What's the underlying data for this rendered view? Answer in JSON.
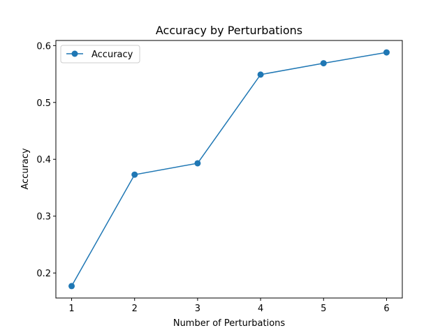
{
  "chart_data": {
    "type": "line",
    "title": "Accuracy by Perturbations",
    "xlabel": "Number of Perturbations",
    "ylabel": "Accuracy",
    "x": [
      1,
      2,
      3,
      4,
      5,
      6
    ],
    "xticks": [
      "1",
      "2",
      "3",
      "4",
      "5",
      "6"
    ],
    "yticks": [
      "0.2",
      "0.3",
      "0.4",
      "0.5",
      "0.6"
    ],
    "ylim": [
      0.156,
      0.609
    ],
    "xlim": [
      0.75,
      6.25
    ],
    "grid": false,
    "legend": "top-left",
    "series": [
      {
        "name": "Accuracy",
        "color": "#1f77b4",
        "marker": "circle",
        "values": [
          0.177,
          0.373,
          0.393,
          0.549,
          0.569,
          0.588
        ]
      }
    ]
  }
}
